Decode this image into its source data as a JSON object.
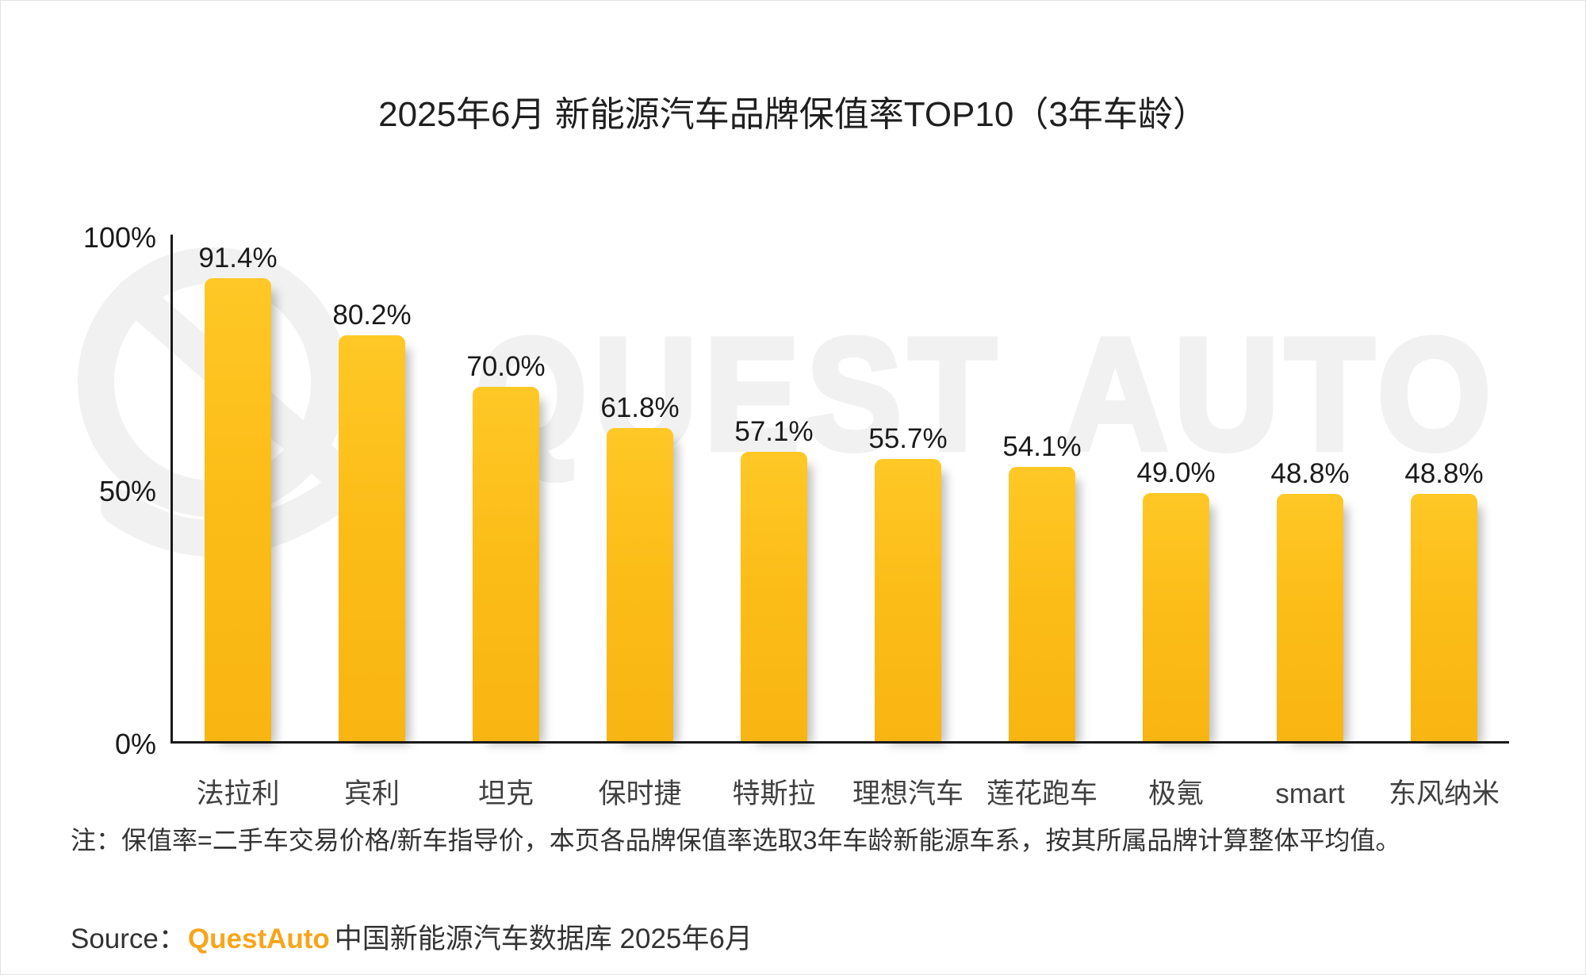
{
  "chart_data": {
    "type": "bar",
    "title": "2025年6月 新能源汽车品牌保值率TOP10（3年车龄）",
    "categories": [
      "法拉利",
      "宾利",
      "坦克",
      "保时捷",
      "特斯拉",
      "理想汽车",
      "莲花跑车",
      "极氪",
      "smart",
      "东风纳米"
    ],
    "values": [
      91.4,
      80.2,
      70.0,
      61.8,
      57.1,
      55.7,
      54.1,
      49.0,
      48.8,
      48.8
    ],
    "value_label_suffix": "%",
    "ylabel": "",
    "xlabel": "",
    "ylim": [
      0,
      100
    ],
    "yticks": [
      "100%",
      "50%",
      "0%"
    ],
    "ytick_values": [
      100,
      50,
      0
    ],
    "grid": false,
    "legend": false,
    "bar_color": "#fcbd18"
  },
  "note": "注：保值率=二手车交易价格/新车指导价，本页各品牌保值率选取3年车龄新能源车系，按其所属品牌计算整体平均值。",
  "source": {
    "prefix": "Source：",
    "brand": "QuestAuto",
    "suffix": "中国新能源汽车数据库 2025年6月"
  },
  "watermark": {
    "word1": "QUEST",
    "word2": "AUTO",
    "color": "#f1f1f1"
  },
  "colors": {
    "bar_yellow": "#fcbd18",
    "brand_orange": "#f7a51c",
    "axis_black": "#1a1a1a"
  }
}
